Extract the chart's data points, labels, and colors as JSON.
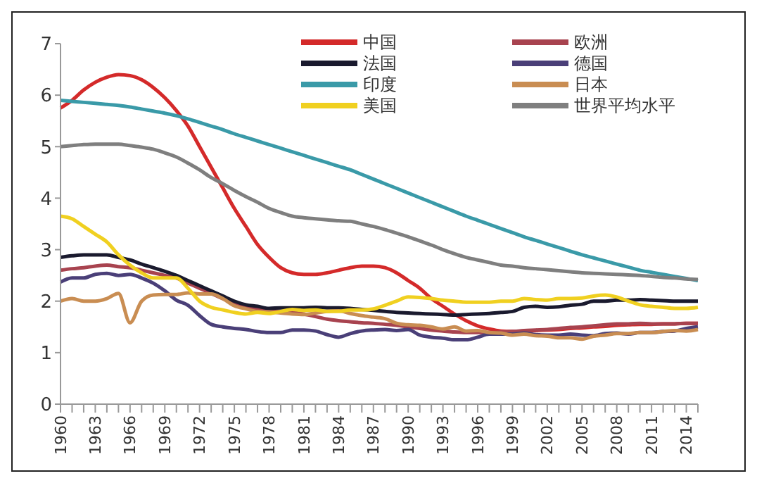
{
  "chart_data": {
    "type": "line",
    "categories": [
      "1960",
      null,
      null,
      "1963",
      null,
      null,
      "1966",
      null,
      null,
      "1969",
      null,
      null,
      "1972",
      null,
      null,
      "1975",
      null,
      null,
      "1978",
      null,
      null,
      "1981",
      null,
      null,
      "1984",
      null,
      null,
      "1987",
      null,
      null,
      "1990",
      null,
      null,
      "1993",
      null,
      null,
      "1996",
      null,
      null,
      "1999",
      null,
      null,
      "2002",
      null,
      null,
      "2005",
      null,
      null,
      "2008",
      null,
      null,
      "2011",
      null,
      null,
      "2014",
      null
    ],
    "series": [
      {
        "name": "中国",
        "color": "#d42a2a",
        "values": [
          5.75,
          5.9,
          6.1,
          6.25,
          6.35,
          6.4,
          6.38,
          6.3,
          6.15,
          5.95,
          5.7,
          5.4,
          5.0,
          4.6,
          4.2,
          3.8,
          3.45,
          3.1,
          2.85,
          2.65,
          2.55,
          2.52,
          2.52,
          2.55,
          2.6,
          2.65,
          2.68,
          2.68,
          2.65,
          2.55,
          2.4,
          2.25,
          2.05,
          1.9,
          1.75,
          1.62,
          1.52,
          1.46,
          1.42,
          1.41,
          1.42,
          1.43,
          1.44,
          1.45,
          1.47,
          1.48,
          1.5,
          1.51,
          1.53,
          1.54,
          1.55,
          1.55,
          1.56,
          1.56,
          1.57,
          1.57
        ]
      },
      {
        "name": "欧洲",
        "color": "#a8434f",
        "values": [
          2.6,
          2.63,
          2.65,
          2.68,
          2.7,
          2.67,
          2.65,
          2.6,
          2.55,
          2.5,
          2.45,
          2.35,
          2.25,
          2.15,
          2.05,
          1.97,
          1.9,
          1.85,
          1.82,
          1.8,
          1.78,
          1.75,
          1.7,
          1.65,
          1.62,
          1.6,
          1.58,
          1.57,
          1.55,
          1.53,
          1.5,
          1.47,
          1.44,
          1.42,
          1.4,
          1.39,
          1.39,
          1.39,
          1.4,
          1.41,
          1.43,
          1.44,
          1.45,
          1.47,
          1.49,
          1.5,
          1.52,
          1.54,
          1.56,
          1.56,
          1.57,
          1.56,
          1.56,
          1.56,
          1.57,
          1.57
        ]
      },
      {
        "name": "法国",
        "color": "#1a1a2e",
        "values": [
          2.85,
          2.88,
          2.9,
          2.9,
          2.9,
          2.85,
          2.8,
          2.72,
          2.65,
          2.58,
          2.5,
          2.4,
          2.3,
          2.2,
          2.1,
          2.0,
          1.93,
          1.9,
          1.86,
          1.87,
          1.87,
          1.87,
          1.88,
          1.87,
          1.87,
          1.86,
          1.84,
          1.82,
          1.8,
          1.78,
          1.77,
          1.76,
          1.75,
          1.74,
          1.73,
          1.74,
          1.75,
          1.76,
          1.78,
          1.8,
          1.88,
          1.9,
          1.88,
          1.89,
          1.92,
          1.94,
          2.0,
          2.0,
          2.02,
          2.02,
          2.03,
          2.02,
          2.01,
          2.0,
          2.0,
          2.0
        ]
      },
      {
        "name": "德国",
        "color": "#4a3f78",
        "values": [
          2.37,
          2.45,
          2.45,
          2.52,
          2.54,
          2.5,
          2.52,
          2.45,
          2.35,
          2.2,
          2.02,
          1.92,
          1.72,
          1.55,
          1.5,
          1.47,
          1.45,
          1.41,
          1.39,
          1.39,
          1.44,
          1.44,
          1.42,
          1.35,
          1.3,
          1.37,
          1.42,
          1.44,
          1.45,
          1.43,
          1.45,
          1.34,
          1.3,
          1.28,
          1.25,
          1.25,
          1.3,
          1.36,
          1.36,
          1.36,
          1.38,
          1.35,
          1.34,
          1.34,
          1.36,
          1.34,
          1.33,
          1.37,
          1.38,
          1.36,
          1.39,
          1.39,
          1.41,
          1.42,
          1.47,
          1.5
        ]
      },
      {
        "name": "印度",
        "color": "#3a9aa8",
        "values": [
          5.9,
          5.88,
          5.86,
          5.84,
          5.82,
          5.8,
          5.77,
          5.73,
          5.69,
          5.65,
          5.6,
          5.54,
          5.47,
          5.4,
          5.33,
          5.25,
          5.18,
          5.11,
          5.04,
          4.97,
          4.9,
          4.83,
          4.76,
          4.69,
          4.62,
          4.55,
          4.46,
          4.37,
          4.28,
          4.19,
          4.1,
          4.01,
          3.92,
          3.83,
          3.74,
          3.65,
          3.57,
          3.49,
          3.41,
          3.33,
          3.25,
          3.18,
          3.11,
          3.04,
          2.97,
          2.9,
          2.84,
          2.78,
          2.72,
          2.66,
          2.6,
          2.56,
          2.52,
          2.48,
          2.44,
          2.4
        ]
      },
      {
        "name": "日本",
        "color": "#c98d52",
        "values": [
          2.0,
          2.05,
          2.0,
          2.0,
          2.05,
          2.15,
          1.58,
          2.0,
          2.12,
          2.13,
          2.13,
          2.16,
          2.14,
          2.14,
          2.05,
          1.91,
          1.85,
          1.8,
          1.79,
          1.77,
          1.75,
          1.74,
          1.77,
          1.8,
          1.81,
          1.76,
          1.72,
          1.69,
          1.66,
          1.57,
          1.54,
          1.53,
          1.5,
          1.46,
          1.5,
          1.42,
          1.43,
          1.39,
          1.38,
          1.34,
          1.36,
          1.33,
          1.32,
          1.29,
          1.29,
          1.26,
          1.32,
          1.34,
          1.37,
          1.37,
          1.39,
          1.39,
          1.41,
          1.43,
          1.42,
          1.45
        ]
      },
      {
        "name": "美国",
        "color": "#f0d020",
        "values": [
          3.65,
          3.6,
          3.45,
          3.3,
          3.15,
          2.9,
          2.7,
          2.55,
          2.45,
          2.45,
          2.45,
          2.25,
          2.0,
          1.88,
          1.83,
          1.78,
          1.75,
          1.78,
          1.76,
          1.8,
          1.84,
          1.82,
          1.83,
          1.8,
          1.8,
          1.83,
          1.83,
          1.85,
          1.92,
          2.0,
          2.08,
          2.07,
          2.05,
          2.02,
          2.0,
          1.98,
          1.98,
          1.98,
          2.0,
          2.0,
          2.05,
          2.03,
          2.02,
          2.05,
          2.05,
          2.06,
          2.1,
          2.12,
          2.08,
          2.0,
          1.93,
          1.9,
          1.88,
          1.86,
          1.86,
          1.88
        ]
      },
      {
        "name": "世界平均水平",
        "color": "#7f7f7f",
        "values": [
          5.0,
          5.02,
          5.04,
          5.05,
          5.05,
          5.05,
          5.02,
          4.99,
          4.95,
          4.88,
          4.8,
          4.68,
          4.55,
          4.4,
          4.28,
          4.15,
          4.03,
          3.92,
          3.8,
          3.72,
          3.65,
          3.62,
          3.6,
          3.58,
          3.56,
          3.55,
          3.5,
          3.45,
          3.39,
          3.32,
          3.25,
          3.17,
          3.09,
          3.0,
          2.92,
          2.85,
          2.8,
          2.75,
          2.7,
          2.68,
          2.65,
          2.63,
          2.61,
          2.59,
          2.57,
          2.55,
          2.54,
          2.53,
          2.52,
          2.51,
          2.5,
          2.48,
          2.46,
          2.45,
          2.43,
          2.42
        ]
      }
    ],
    "ylim": [
      0,
      7
    ],
    "yticks": [
      0,
      1,
      2,
      3,
      4,
      5,
      6,
      7
    ],
    "grid": false,
    "legend": "top right",
    "marker": "none",
    "line_style": "solid"
  }
}
